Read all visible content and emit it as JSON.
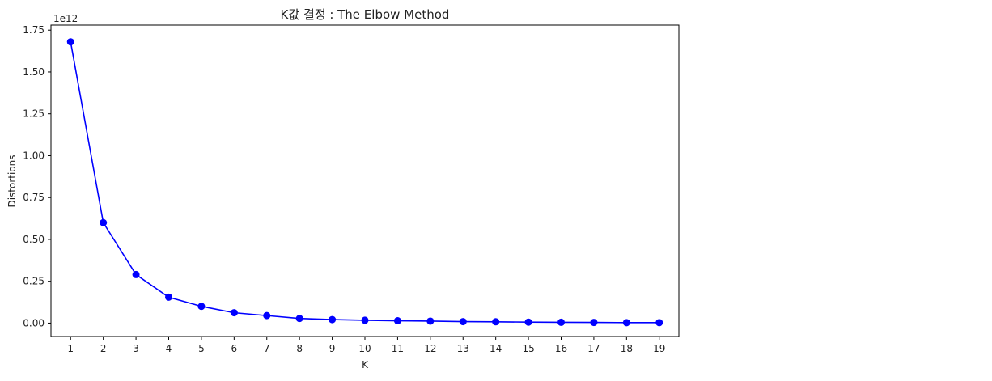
{
  "chart_data": {
    "type": "line",
    "title": "K값 결정 : The Elbow Method",
    "xlabel": "K",
    "ylabel": "Distortions",
    "y_offset_label": "1e12",
    "x": [
      1,
      2,
      3,
      4,
      5,
      6,
      7,
      8,
      9,
      10,
      11,
      12,
      13,
      14,
      15,
      16,
      17,
      18,
      19
    ],
    "y_ticks": [
      0.0,
      0.25,
      0.5,
      0.75,
      1.0,
      1.25,
      1.5,
      1.75
    ],
    "y_tick_labels": [
      "0.00",
      "0.25",
      "0.50",
      "0.75",
      "1.00",
      "1.25",
      "1.50",
      "1.75"
    ],
    "ylim": [
      -0.08,
      1.78
    ],
    "xlim": [
      0.4,
      19.6
    ],
    "grid": false,
    "series": [
      {
        "color": "#0000ff",
        "marker": "circle",
        "values": [
          1.68,
          0.6,
          0.29,
          0.155,
          0.1,
          0.062,
          0.045,
          0.028,
          0.021,
          0.017,
          0.014,
          0.012,
          0.009,
          0.008,
          0.006,
          0.005,
          0.004,
          0.003,
          0.003
        ]
      }
    ]
  }
}
